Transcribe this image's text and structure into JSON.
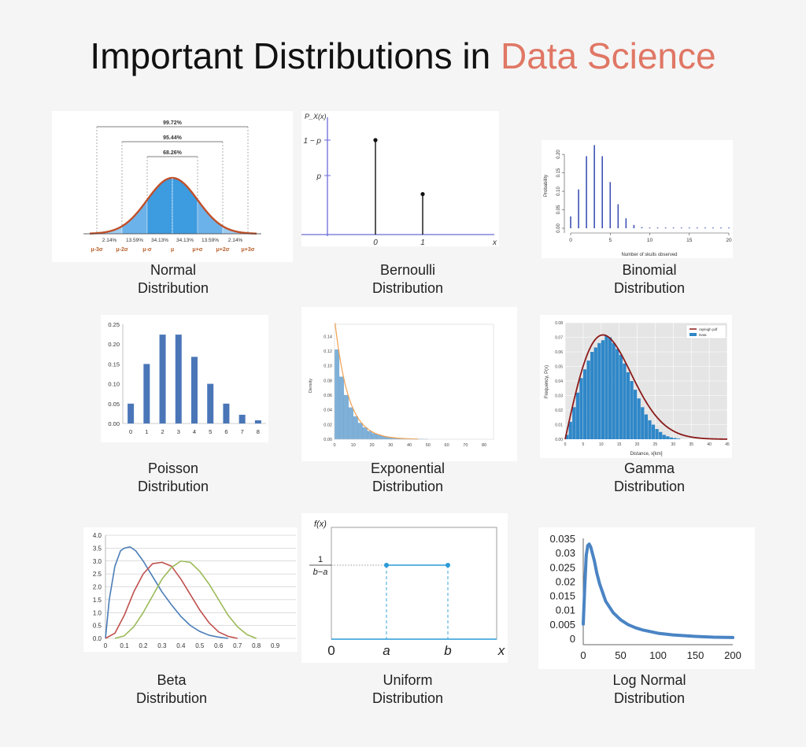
{
  "title": {
    "main": "Important Distributions in",
    "accent": "Data Science",
    "accent_color": "#e07765"
  },
  "captions": {
    "normal": [
      "Normal",
      "Distribution"
    ],
    "bernoulli": [
      "Bernoulli",
      "Distribution"
    ],
    "binomial": [
      "Binomial",
      "Distribution"
    ],
    "poisson": [
      "Poisson",
      "Distribution"
    ],
    "exponential": [
      "Exponential",
      "Distribution"
    ],
    "gamma": [
      "Gamma",
      "Distribution"
    ],
    "beta": [
      "Beta",
      "Distribution"
    ],
    "uniform": [
      "Uniform",
      "Distribution"
    ],
    "lognormal": [
      "Log Normal",
      "Distribution"
    ]
  },
  "chart_data": [
    {
      "id": "normal",
      "type": "area",
      "curve_color": "#c0502a",
      "fill_color": "#3d9be0",
      "spans": [
        "99.72%",
        "95.44%",
        "68.26%"
      ],
      "band_percents": [
        "2.14%",
        "13.59%",
        "34.13%",
        "34.13%",
        "13.59%",
        "2.14%"
      ],
      "tick_labels": [
        "μ-3σ",
        "μ-2σ",
        "μ-σ",
        "μ",
        "μ+σ",
        "μ+2σ",
        "μ+3σ"
      ]
    },
    {
      "id": "bernoulli",
      "type": "bar",
      "ylabel": "P_X(x)",
      "xlabel": "x",
      "categories": [
        "0",
        "1"
      ],
      "values": [
        0.7,
        0.3
      ],
      "y_tick_labels": [
        "1 − p",
        "p"
      ],
      "axis_color": "#6b6bd8"
    },
    {
      "id": "binomial",
      "type": "bar",
      "xlabel": "Number of skulls observed",
      "ylabel": "Probability",
      "x": [
        0,
        1,
        2,
        3,
        4,
        5,
        6,
        7,
        8,
        9,
        10,
        11,
        12,
        13,
        14,
        15,
        16,
        17,
        18,
        19,
        20
      ],
      "values": [
        0.032,
        0.105,
        0.195,
        0.225,
        0.195,
        0.125,
        0.065,
        0.027,
        0.009,
        0.003,
        0.001,
        0.0003,
        0.0001,
        0,
        0,
        0,
        0,
        0,
        0,
        0,
        0
      ],
      "x_ticks": [
        "0",
        "5",
        "10",
        "15",
        "20"
      ],
      "y_ticks": [
        "0.00",
        "0.05",
        "0.10",
        "0.15",
        "0.20"
      ],
      "ylim": [
        0,
        0.23
      ],
      "color": "#3f51b5"
    },
    {
      "id": "poisson",
      "type": "bar",
      "categories": [
        "0",
        "1",
        "2",
        "3",
        "4",
        "5",
        "6",
        "7",
        "8"
      ],
      "values": [
        0.05,
        0.15,
        0.224,
        0.224,
        0.168,
        0.1,
        0.05,
        0.022,
        0.008
      ],
      "y_ticks": [
        "0.00",
        "0.05",
        "0.10",
        "0.15",
        "0.20",
        "0.25"
      ],
      "ylim": [
        0,
        0.25
      ],
      "color": "#4a76b8"
    },
    {
      "id": "exponential",
      "type": "bar",
      "ylabel": "Density",
      "bin_width": 2.5,
      "values": [
        0.122,
        0.085,
        0.06,
        0.043,
        0.031,
        0.022,
        0.016,
        0.011,
        0.008,
        0.006,
        0.004,
        0.003,
        0.002,
        0.0015,
        0.001,
        0.0007,
        0.0005,
        0.0003,
        0.0002,
        0.0001
      ],
      "x_ticks": [
        "0",
        "10",
        "20",
        "30",
        "40",
        "50",
        "60",
        "70",
        "80"
      ],
      "y_ticks": [
        "0.00",
        "0.02",
        "0.04",
        "0.06",
        "0.08",
        "0.10",
        "0.12",
        "0.14"
      ],
      "xlim": [
        0,
        85
      ],
      "ylim": [
        0,
        0.15
      ],
      "bar_color": "#7fb0d8",
      "curve_color": "#f0a050"
    },
    {
      "id": "gamma",
      "type": "bar",
      "xlabel": "Distance, x[km]",
      "ylabel": "Frequency, P(x)",
      "legend": [
        "rayleigh pdf",
        "Data"
      ],
      "legend_position": "top-right",
      "bin_width": 1,
      "values": [
        0.003,
        0.012,
        0.022,
        0.032,
        0.042,
        0.048,
        0.054,
        0.06,
        0.063,
        0.066,
        0.068,
        0.071,
        0.07,
        0.066,
        0.062,
        0.058,
        0.052,
        0.046,
        0.04,
        0.034,
        0.028,
        0.022,
        0.017,
        0.013,
        0.01,
        0.007,
        0.005,
        0.003,
        0.002,
        0.0012,
        0.0008,
        0.0004
      ],
      "x_ticks": [
        "0",
        "5",
        "10",
        "15",
        "20",
        "25",
        "30",
        "35",
        "40",
        "45"
      ],
      "y_ticks": [
        "0.00",
        "0.01",
        "0.02",
        "0.03",
        "0.04",
        "0.05",
        "0.06",
        "0.07",
        "0.08"
      ],
      "xlim": [
        0,
        45
      ],
      "ylim": [
        0,
        0.08
      ],
      "bar_color": "#2f87c8",
      "curve_color": "#8b1a1a",
      "background": "#e5e5e5"
    },
    {
      "id": "beta",
      "type": "line",
      "x_ticks": [
        "0",
        "0.1",
        "0.2",
        "0.3",
        "0.4",
        "0.5",
        "0.6",
        "0.7",
        "0.8",
        "0.9"
      ],
      "y_ticks": [
        "0.0",
        "0.5",
        "1.0",
        "1.5",
        "2.0",
        "2.5",
        "3.0",
        "3.5",
        "4.0"
      ],
      "xlim": [
        0,
        1
      ],
      "ylim": [
        0,
        4
      ],
      "series": [
        {
          "color": "#4a7db8",
          "x": [
            0,
            0.02,
            0.05,
            0.08,
            0.1,
            0.13,
            0.16,
            0.2,
            0.25,
            0.3,
            0.35,
            0.4,
            0.45,
            0.5,
            0.55,
            0.6,
            0.65
          ],
          "y": [
            0,
            1.5,
            2.8,
            3.4,
            3.5,
            3.55,
            3.4,
            3.0,
            2.4,
            1.8,
            1.3,
            0.85,
            0.5,
            0.27,
            0.12,
            0.05,
            0
          ]
        },
        {
          "color": "#c0504d",
          "x": [
            0,
            0.05,
            0.1,
            0.15,
            0.2,
            0.25,
            0.3,
            0.35,
            0.4,
            0.45,
            0.5,
            0.55,
            0.6,
            0.65,
            0.7
          ],
          "y": [
            0,
            0.2,
            0.9,
            1.8,
            2.5,
            2.9,
            2.95,
            2.8,
            2.3,
            1.7,
            1.1,
            0.6,
            0.25,
            0.08,
            0
          ]
        },
        {
          "color": "#9bbb59",
          "x": [
            0.05,
            0.1,
            0.15,
            0.2,
            0.25,
            0.3,
            0.35,
            0.4,
            0.45,
            0.5,
            0.55,
            0.6,
            0.65,
            0.7,
            0.75,
            0.8
          ],
          "y": [
            0,
            0.1,
            0.45,
            1.0,
            1.65,
            2.3,
            2.75,
            3.0,
            2.95,
            2.6,
            2.1,
            1.5,
            0.9,
            0.45,
            0.15,
            0
          ]
        }
      ]
    },
    {
      "id": "uniform",
      "type": "line",
      "ylabel": "f(x)",
      "y_label_num": "1",
      "y_label_den": "b−a",
      "x_labels": [
        "0",
        "a",
        "b",
        "x"
      ],
      "color": "#2a9bd8"
    },
    {
      "id": "lognormal",
      "type": "line",
      "x_ticks": [
        "0",
        "50",
        "100",
        "150",
        "200"
      ],
      "y_ticks": [
        "0",
        "0.005",
        "0.01",
        "0.015",
        "0.02",
        "0.025",
        "0.03",
        "0.035"
      ],
      "xlim": [
        0,
        200
      ],
      "ylim": [
        0,
        0.035
      ],
      "x": [
        0,
        2,
        4,
        6,
        8,
        10,
        12,
        15,
        18,
        22,
        26,
        30,
        40,
        50,
        60,
        70,
        80,
        100,
        120,
        150,
        175,
        200
      ],
      "y": [
        0.005,
        0.018,
        0.029,
        0.0325,
        0.033,
        0.032,
        0.03,
        0.027,
        0.023,
        0.019,
        0.016,
        0.013,
        0.009,
        0.0065,
        0.0048,
        0.0037,
        0.0029,
        0.0018,
        0.0012,
        0.0007,
        0.0004,
        0.0003
      ],
      "color": "#4a84c4"
    }
  ]
}
